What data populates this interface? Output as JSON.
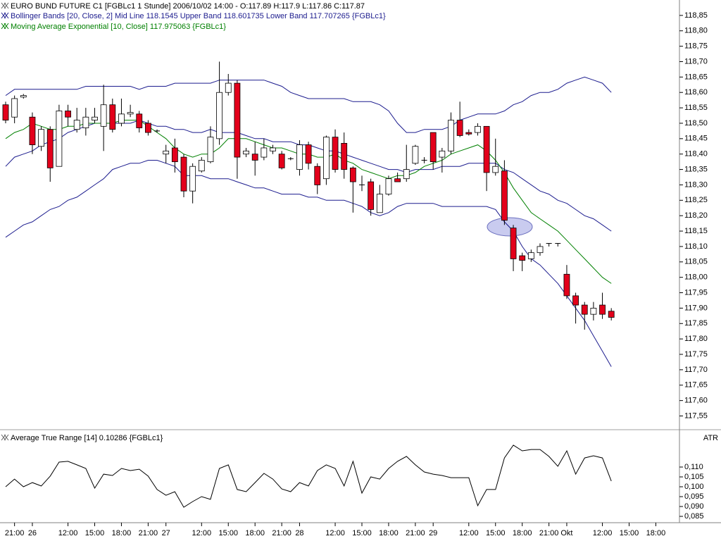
{
  "chart_data": [
    {
      "type": "candlestick",
      "title": "EURO BUND FUTURE C1 [FGBLc1  1 Stunde] 2006/10/02 14:00 - O:117.89 H:117.9 L:117.86 C:117.87",
      "categories": [
        null,
        "21:00",
        null,
        "26",
        null,
        null,
        null,
        "12:00",
        null,
        null,
        "15:00",
        null,
        null,
        "18:00",
        null,
        null,
        "21:00",
        null,
        "27",
        null,
        null,
        null,
        "12:00",
        null,
        null,
        "15:00",
        null,
        null,
        "18:00",
        null,
        null,
        "21:00",
        null,
        "28",
        null,
        null,
        null,
        "12:00",
        null,
        null,
        "15:00",
        null,
        null,
        "18:00",
        null,
        null,
        "21:00",
        null,
        "29",
        null,
        null,
        null,
        "12:00",
        null,
        null,
        "15:00",
        null,
        null,
        "18:00",
        null,
        null,
        "21:00",
        null,
        "Okt",
        null,
        null,
        null,
        "12:00",
        null,
        null,
        "15:00",
        null,
        null,
        "18:00"
      ],
      "open": [
        118.56,
        118.52,
        118.585,
        118.52,
        118.425,
        118.48,
        118.36,
        118.54,
        118.48,
        118.485,
        118.51,
        118.49,
        118.56,
        118.5,
        118.53,
        118.53,
        118.5,
        118.475,
        118.4,
        118.42,
        118.39,
        118.28,
        118.345,
        118.375,
        118.45,
        118.6,
        118.63,
        118.4,
        118.4,
        118.39,
        118.41,
        118.4,
        118.385,
        118.35,
        118.43,
        118.36,
        118.32,
        118.455,
        118.435,
        118.355,
        118.3,
        118.31,
        118.21,
        118.27,
        118.32,
        118.32,
        118.37,
        118.38,
        118.47,
        118.39,
        118.41,
        118.51,
        118.47,
        118.47,
        118.49,
        118.34,
        118.345,
        118.16,
        118.07,
        118.06,
        118.08,
        118.11,
        118.11,
        118.01,
        117.94,
        117.91,
        117.88,
        117.91,
        117.89,
        null,
        null,
        null,
        null,
        null
      ],
      "high": [
        118.57,
        118.59,
        118.595,
        118.535,
        118.49,
        118.49,
        118.56,
        118.56,
        118.55,
        118.55,
        118.55,
        118.625,
        118.58,
        118.58,
        118.56,
        118.54,
        118.51,
        118.48,
        118.43,
        118.45,
        118.4,
        118.37,
        118.39,
        118.49,
        118.7,
        118.66,
        118.64,
        118.42,
        118.44,
        118.45,
        118.43,
        118.41,
        118.39,
        118.445,
        118.44,
        118.37,
        118.46,
        118.48,
        118.47,
        118.36,
        118.33,
        118.32,
        118.3,
        118.33,
        118.34,
        118.43,
        118.43,
        118.39,
        118.47,
        118.42,
        118.535,
        118.57,
        118.48,
        118.5,
        118.49,
        118.45,
        118.38,
        118.17,
        118.08,
        118.09,
        118.11,
        118.11,
        118.11,
        118.04,
        117.95,
        117.92,
        117.92,
        117.95,
        117.9,
        null,
        null,
        null,
        null,
        null
      ],
      "low": [
        118.5,
        118.5,
        118.58,
        118.4,
        118.41,
        118.31,
        118.36,
        118.49,
        118.47,
        118.46,
        118.5,
        118.41,
        118.47,
        118.49,
        118.52,
        118.47,
        118.46,
        118.47,
        118.37,
        118.34,
        118.26,
        118.24,
        118.34,
        118.37,
        118.43,
        118.59,
        118.32,
        118.39,
        118.33,
        118.38,
        118.4,
        118.35,
        118.38,
        118.33,
        118.35,
        118.27,
        118.3,
        118.34,
        118.32,
        118.21,
        118.28,
        118.2,
        118.21,
        118.265,
        118.31,
        118.31,
        118.365,
        118.37,
        118.35,
        118.34,
        118.4,
        118.455,
        118.46,
        118.46,
        118.28,
        118.33,
        118.17,
        118.02,
        118.02,
        118.05,
        118.07,
        118.1,
        118.1,
        117.93,
        117.85,
        117.83,
        117.86,
        117.865,
        117.86,
        null,
        null,
        null,
        null,
        null
      ],
      "close": [
        118.51,
        118.58,
        118.59,
        118.43,
        118.48,
        118.355,
        118.54,
        118.52,
        118.51,
        118.52,
        118.52,
        118.56,
        118.48,
        118.53,
        118.535,
        118.485,
        118.47,
        118.475,
        118.41,
        118.375,
        118.28,
        118.36,
        118.38,
        118.455,
        118.6,
        118.63,
        118.39,
        118.41,
        118.38,
        118.42,
        118.42,
        118.355,
        118.385,
        118.43,
        118.37,
        118.3,
        118.455,
        118.35,
        118.35,
        118.31,
        118.3,
        118.22,
        118.27,
        118.32,
        118.31,
        118.35,
        118.425,
        118.38,
        118.375,
        118.41,
        118.51,
        118.46,
        118.465,
        118.49,
        118.34,
        118.36,
        118.185,
        118.06,
        118.055,
        118.08,
        118.1,
        118.11,
        118.11,
        117.94,
        117.91,
        117.88,
        117.9,
        117.88,
        117.87,
        null,
        null,
        null,
        null,
        null
      ],
      "up_color": "#ffffff",
      "down_color": "#e3001b",
      "series": [
        {
          "name": "Bollinger Bands [20, Close, 2] Mid Line 118.1545 Upper Band 118.601735 Lower Band 117.707265 {FGBLc1}",
          "color": "#1c1c8e",
          "upper": [
            118.59,
            118.61,
            118.61,
            118.61,
            118.61,
            118.61,
            118.61,
            118.61,
            118.61,
            118.62,
            118.62,
            118.62,
            118.62,
            118.62,
            118.62,
            118.61,
            118.62,
            118.62,
            118.62,
            118.63,
            118.63,
            118.63,
            118.63,
            118.63,
            118.64,
            118.64,
            118.64,
            118.64,
            118.64,
            118.64,
            118.63,
            118.62,
            118.6,
            118.59,
            118.58,
            118.58,
            118.58,
            118.58,
            118.58,
            118.57,
            118.57,
            118.57,
            118.56,
            118.54,
            118.5,
            118.47,
            118.47,
            118.48,
            118.48,
            118.48,
            118.49,
            118.51,
            118.52,
            118.53,
            118.53,
            118.53,
            118.54,
            118.56,
            118.57,
            118.59,
            118.6,
            118.6,
            118.61,
            118.63,
            118.64,
            118.65,
            118.64,
            118.63,
            118.6,
            null,
            null,
            null,
            null,
            null
          ],
          "mid": [
            118.36,
            118.39,
            118.4,
            118.41,
            118.43,
            118.44,
            118.45,
            118.47,
            118.48,
            118.49,
            118.5,
            118.5,
            118.5,
            118.5,
            118.5,
            118.51,
            118.5,
            118.49,
            118.49,
            118.48,
            118.48,
            118.47,
            118.47,
            118.48,
            118.47,
            118.47,
            118.47,
            118.46,
            118.45,
            118.45,
            118.44,
            118.44,
            118.44,
            118.43,
            118.43,
            118.42,
            118.41,
            118.41,
            118.4,
            118.39,
            118.38,
            118.37,
            118.36,
            118.35,
            118.35,
            118.34,
            118.35,
            118.35,
            118.35,
            118.36,
            118.36,
            118.36,
            118.37,
            118.37,
            118.37,
            118.37,
            118.35,
            118.34,
            118.32,
            118.3,
            118.28,
            118.27,
            118.25,
            118.24,
            118.22,
            118.2,
            118.19,
            118.17,
            118.15,
            null,
            null,
            null,
            null,
            null
          ],
          "lower": [
            118.13,
            118.15,
            118.17,
            118.18,
            118.2,
            118.22,
            118.23,
            118.25,
            118.26,
            118.28,
            118.3,
            118.32,
            118.35,
            118.36,
            118.37,
            118.37,
            118.38,
            118.38,
            118.37,
            118.36,
            118.33,
            118.33,
            118.33,
            118.32,
            118.32,
            118.32,
            118.31,
            118.3,
            118.29,
            118.29,
            118.28,
            118.27,
            118.27,
            118.27,
            118.26,
            118.26,
            118.25,
            118.25,
            118.25,
            118.24,
            118.23,
            118.21,
            118.2,
            118.21,
            118.23,
            118.24,
            118.24,
            118.24,
            118.24,
            118.23,
            118.23,
            118.23,
            118.23,
            118.23,
            118.23,
            118.22,
            118.18,
            118.15,
            118.1,
            118.06,
            118.04,
            118.01,
            117.98,
            117.94,
            117.9,
            117.86,
            117.81,
            117.76,
            117.71,
            null,
            null,
            null,
            null,
            null
          ]
        },
        {
          "name": "Moving Average Exponential [10, Close] 117.975063 {FGBLc1}",
          "color": "#008000",
          "values": [
            118.45,
            118.47,
            118.48,
            118.5,
            118.49,
            118.48,
            118.48,
            118.49,
            118.49,
            118.5,
            118.5,
            118.5,
            118.5,
            118.51,
            118.51,
            118.51,
            118.49,
            118.47,
            118.45,
            118.42,
            118.4,
            118.39,
            118.4,
            118.4,
            118.42,
            118.45,
            118.45,
            118.45,
            118.44,
            118.43,
            118.42,
            118.42,
            118.41,
            118.4,
            118.4,
            118.39,
            118.39,
            118.4,
            118.38,
            118.37,
            118.35,
            118.34,
            118.33,
            118.32,
            118.33,
            118.33,
            118.34,
            118.36,
            118.37,
            118.38,
            118.4,
            118.41,
            118.42,
            118.43,
            118.41,
            118.38,
            118.34,
            118.29,
            118.25,
            118.21,
            118.19,
            118.17,
            118.15,
            118.12,
            118.09,
            118.06,
            118.03,
            118.0,
            117.98,
            null,
            null,
            null,
            null,
            null
          ]
        }
      ],
      "ylim": [
        117.51,
        118.9
      ],
      "yticks": [
        {
          "value": 118.85,
          "label": "118,85"
        },
        {
          "value": 118.8,
          "label": "118,80"
        },
        {
          "value": 118.75,
          "label": "118,75"
        },
        {
          "value": 118.7,
          "label": "118,70"
        },
        {
          "value": 118.65,
          "label": "118,65"
        },
        {
          "value": 118.6,
          "label": "118,60"
        },
        {
          "value": 118.55,
          "label": "118,55"
        },
        {
          "value": 118.5,
          "label": "118,50"
        },
        {
          "value": 118.45,
          "label": "118,45"
        },
        {
          "value": 118.4,
          "label": "118,40"
        },
        {
          "value": 118.35,
          "label": "118,35"
        },
        {
          "value": 118.3,
          "label": "118,30"
        },
        {
          "value": 118.25,
          "label": "118,25"
        },
        {
          "value": 118.2,
          "label": "118,20"
        },
        {
          "value": 118.15,
          "label": "118,15"
        },
        {
          "value": 118.1,
          "label": "118,10"
        },
        {
          "value": 118.05,
          "label": "118,05"
        },
        {
          "value": 118.0,
          "label": "118,00"
        },
        {
          "value": 117.95,
          "label": "117,95"
        },
        {
          "value": 117.9,
          "label": "117,90"
        },
        {
          "value": 117.85,
          "label": "117,85"
        },
        {
          "value": 117.8,
          "label": "117,80"
        },
        {
          "value": 117.75,
          "label": "117,75"
        },
        {
          "value": 117.7,
          "label": "117,70"
        },
        {
          "value": 117.65,
          "label": "117,65"
        },
        {
          "value": 117.6,
          "label": "117,60"
        },
        {
          "value": 117.55,
          "label": "117,55"
        }
      ]
    },
    {
      "type": "line",
      "title": "Average True Range [14] 0.10286 {FGBLc1}",
      "axis_label": "ATR",
      "color": "#000000",
      "values": [
        0.1,
        0.1039,
        0.1,
        0.1021,
        0.1004,
        0.1054,
        0.1125,
        0.1129,
        0.1111,
        0.1093,
        0.0993,
        0.1064,
        0.1057,
        0.1093,
        0.1082,
        0.1089,
        0.1054,
        0.0986,
        0.0957,
        0.0975,
        0.0896,
        0.0925,
        0.095,
        0.0936,
        0.1093,
        0.1111,
        0.0986,
        0.0975,
        0.1021,
        0.1068,
        0.1039,
        0.0989,
        0.0975,
        0.1021,
        0.1004,
        0.1082,
        0.1111,
        0.1093,
        0.1004,
        0.1129,
        0.0968,
        0.105,
        0.1039,
        0.1093,
        0.1129,
        0.1154,
        0.1111,
        0.1075,
        0.1064,
        0.1057,
        0.1046,
        0.1046,
        0.1046,
        0.0904,
        0.0986,
        0.0986,
        0.1146,
        0.1211,
        0.1182,
        0.1189,
        0.1189,
        0.1154,
        0.1104,
        0.1182,
        0.1064,
        0.1146,
        0.1157,
        0.1146,
        0.1029,
        null,
        null,
        null,
        null,
        null
      ],
      "ylim": [
        0.0818,
        0.1282
      ],
      "yticks": [
        {
          "value": 0.11,
          "label": "0,110"
        },
        {
          "value": 0.105,
          "label": "0,105"
        },
        {
          "value": 0.1,
          "label": "0,100"
        },
        {
          "value": 0.095,
          "label": "0,095"
        },
        {
          "value": 0.09,
          "label": "0,090"
        },
        {
          "value": 0.085,
          "label": "0,085"
        }
      ]
    }
  ]
}
